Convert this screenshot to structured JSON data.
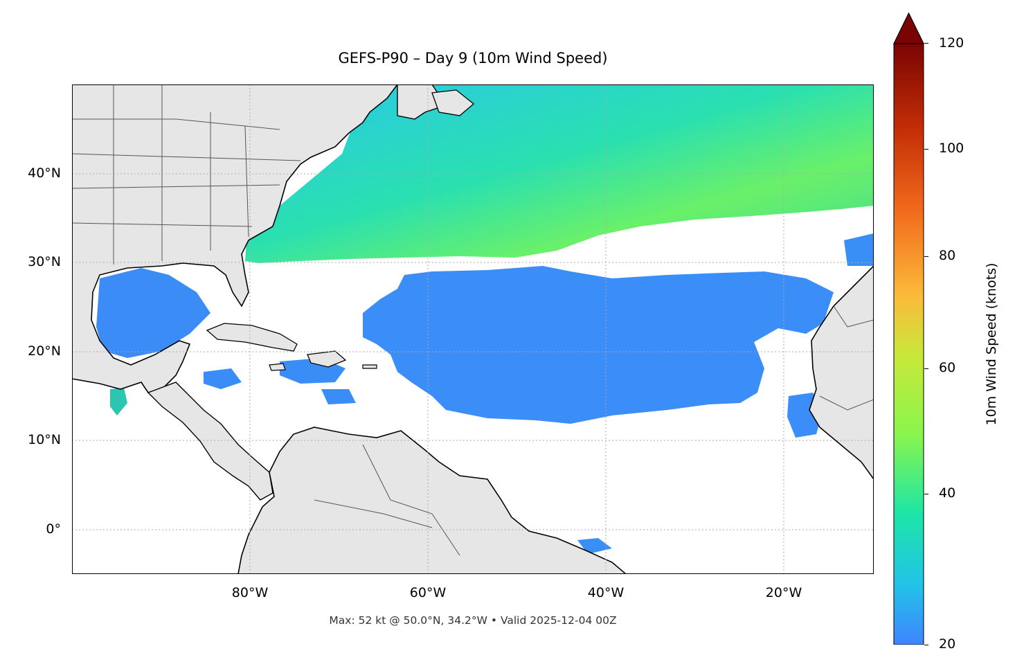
{
  "title": "GEFS-P90 – Day 9 (10m Wind Speed)",
  "footer": "Max: 52 kt @ 50.0°N, 34.2°W • Valid 2025-12-04 00Z",
  "axes": {
    "x_ticks": [
      "80°W",
      "60°W",
      "40°W",
      "20°W"
    ],
    "y_ticks": [
      "40°N",
      "30°N",
      "20°N",
      "10°N",
      "0°"
    ],
    "lon_range": [
      -100,
      -10
    ],
    "lat_range": [
      -5,
      50
    ]
  },
  "colorbar": {
    "label": "10m Wind Speed (knots)",
    "ticks": [
      "120",
      "100",
      "80",
      "60",
      "40",
      "20"
    ],
    "range": [
      20,
      120
    ],
    "extend": "max",
    "colormap": "turbo"
  },
  "colors": {
    "land": "#e6e6e6",
    "ocean_calm": "#ffffff",
    "wind_low": "#3f8cff",
    "wind_mid": "#25d6b4",
    "wind_high": "#9cf53a",
    "coastline": "#000000",
    "borders": "#555555"
  }
}
